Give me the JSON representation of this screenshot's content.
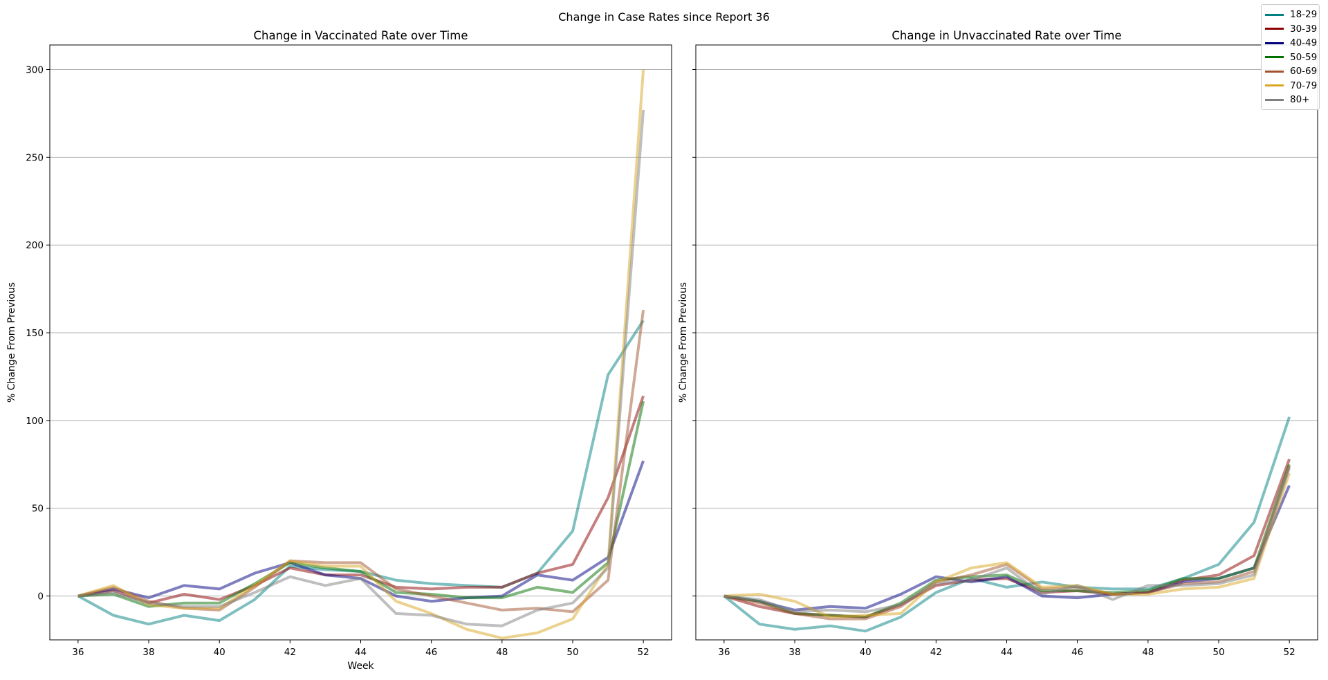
{
  "figure": {
    "title": "Change in Case Rates since Report 36"
  },
  "chart_data": [
    {
      "type": "line",
      "title": "Change in Vaccinated Rate over Time",
      "xlabel": "Week",
      "ylabel": "% Change From Previous",
      "x": [
        36,
        37,
        38,
        39,
        40,
        41,
        42,
        43,
        44,
        45,
        46,
        47,
        48,
        49,
        50,
        51,
        52
      ],
      "xticks": [
        36,
        38,
        40,
        42,
        44,
        46,
        48,
        50,
        52
      ],
      "yticks": [
        0,
        50,
        100,
        150,
        200,
        250,
        300
      ],
      "ylim": [
        -25,
        314
      ],
      "xlim": [
        35.2,
        52.8
      ],
      "grid": "y",
      "series": [
        {
          "name": "18-29",
          "color": "#008080",
          "values": [
            0,
            -11,
            -16,
            -11,
            -14,
            -2,
            17,
            15,
            14,
            9,
            7,
            6,
            5,
            13,
            37,
            126,
            157
          ]
        },
        {
          "name": "30-39",
          "color": "#8b0000",
          "values": [
            0,
            3,
            -4,
            1,
            -2,
            6,
            16,
            12,
            12,
            5,
            4,
            5,
            5,
            13,
            18,
            56,
            114
          ]
        },
        {
          "name": "40-49",
          "color": "#000080",
          "values": [
            0,
            4,
            -1,
            6,
            4,
            13,
            19,
            12,
            10,
            0,
            -3,
            -1,
            0,
            12,
            9,
            22,
            77
          ]
        },
        {
          "name": "50-59",
          "color": "#007000",
          "values": [
            0,
            1,
            -6,
            -4,
            -4,
            7,
            19,
            16,
            14,
            2,
            1,
            -1,
            -1,
            5,
            2,
            19,
            111
          ]
        },
        {
          "name": "60-69",
          "color": "#a0522d",
          "values": [
            0,
            5,
            -3,
            -7,
            -8,
            5,
            20,
            19,
            19,
            4,
            0,
            -4,
            -8,
            -7,
            -9,
            9,
            163
          ]
        },
        {
          "name": "70-79",
          "color": "#daa520",
          "values": [
            0,
            6,
            -5,
            -7,
            -7,
            6,
            20,
            17,
            17,
            -3,
            -10,
            -19,
            -24,
            -21,
            -13,
            18,
            300
          ]
        },
        {
          "name": "80+",
          "color": "#808080",
          "values": [
            0,
            2,
            -4,
            -6,
            -6,
            2,
            11,
            6,
            10,
            -10,
            -11,
            -16,
            -17,
            -8,
            -4,
            16,
            277
          ]
        }
      ]
    },
    {
      "type": "line",
      "title": "Change in Unvaccinated Rate over Time",
      "xlabel": "",
      "ylabel": "% Change From Previous",
      "x": [
        36,
        37,
        38,
        39,
        40,
        41,
        42,
        43,
        44,
        45,
        46,
        47,
        48,
        49,
        50,
        51,
        52
      ],
      "xticks": [
        36,
        38,
        40,
        42,
        44,
        46,
        48,
        50,
        52
      ],
      "yticks": [
        0,
        50,
        100,
        150,
        200,
        250,
        300
      ],
      "ylim": [
        -25,
        314
      ],
      "xlim": [
        35.2,
        52.8
      ],
      "grid": "y",
      "series": [
        {
          "name": "18-29",
          "color": "#008080",
          "values": [
            0,
            -16,
            -19,
            -17,
            -20,
            -12,
            2,
            10,
            5,
            8,
            5,
            4,
            4,
            10,
            18,
            42,
            102
          ]
        },
        {
          "name": "30-39",
          "color": "#8b0000",
          "values": [
            0,
            -6,
            -10,
            -11,
            -12,
            -5,
            6,
            9,
            10,
            2,
            3,
            1,
            2,
            9,
            12,
            23,
            78
          ]
        },
        {
          "name": "40-49",
          "color": "#000080",
          "values": [
            0,
            -3,
            -8,
            -6,
            -7,
            1,
            11,
            8,
            11,
            0,
            -1,
            1,
            2,
            8,
            10,
            16,
            63
          ]
        },
        {
          "name": "50-59",
          "color": "#007000",
          "values": [
            0,
            -3,
            -10,
            -11,
            -12,
            -4,
            9,
            11,
            12,
            3,
            3,
            2,
            3,
            10,
            10,
            16,
            75
          ]
        },
        {
          "name": "60-69",
          "color": "#a0522d",
          "values": [
            0,
            -4,
            -10,
            -13,
            -13,
            -6,
            8,
            12,
            18,
            4,
            5,
            1,
            2,
            7,
            8,
            14,
            74
          ]
        },
        {
          "name": "70-79",
          "color": "#daa520",
          "values": [
            0,
            1,
            -3,
            -12,
            -11,
            -10,
            8,
            16,
            19,
            5,
            6,
            1,
            1,
            4,
            5,
            10,
            70
          ]
        },
        {
          "name": "80+",
          "color": "#808080",
          "values": [
            0,
            -2,
            -9,
            -8,
            -9,
            -5,
            7,
            9,
            16,
            1,
            6,
            -2,
            6,
            6,
            7,
            12,
            73
          ]
        }
      ]
    }
  ],
  "legend": {
    "placement": "top-right",
    "items": [
      {
        "label": "18-29",
        "color": "#008080"
      },
      {
        "label": "30-39",
        "color": "#8b0000"
      },
      {
        "label": "40-49",
        "color": "#000080"
      },
      {
        "label": "50-59",
        "color": "#007000"
      },
      {
        "label": "60-69",
        "color": "#a0522d"
      },
      {
        "label": "70-79",
        "color": "#daa520"
      },
      {
        "label": "80+",
        "color": "#808080"
      }
    ]
  }
}
